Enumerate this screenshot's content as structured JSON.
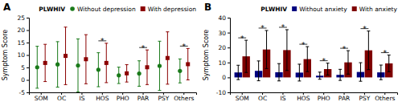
{
  "chart_data": [
    {
      "type": "point",
      "title": "A",
      "categories": [
        "SOM",
        "OC",
        "IS",
        "HOS",
        "PHO",
        "PAR",
        "PSY",
        "Others"
      ],
      "series": [
        {
          "name": "Without depression",
          "color": "#1a7a1a",
          "marker": "circle",
          "values": [
            5.08,
            6.23,
            5.81,
            4.09,
            1.83,
            2.56,
            5.65,
            3.61
          ],
          "errors": [
            8.42,
            9.13,
            10.66,
            6.83,
            3.29,
            5.11,
            9.89,
            4.81
          ]
        },
        {
          "name": "With depression",
          "color": "#8b0000",
          "marker": "square",
          "values": [
            6.81,
            9.65,
            8.31,
            6.81,
            2.63,
            5.08,
            8.79,
            6.31
          ],
          "errors": [
            7.48,
            11.55,
            9.86,
            7.91,
            3.48,
            6.96,
            10.51,
            6.31
          ]
        }
      ],
      "annotations": [
        {
          "text": "*",
          "category": "HOS"
        },
        {
          "text": "*",
          "category": "PAR"
        },
        {
          "text": "*",
          "category": "Others"
        }
      ],
      "y_label": "Symptom Score",
      "ylim": [
        -5,
        25
      ],
      "yticks": [
        -5,
        0,
        5,
        10,
        15,
        20,
        25
      ],
      "grid": false,
      "legend": "upper right",
      "legend_title": "PLWHIV"
    },
    {
      "type": "bar",
      "title": "B",
      "categories": [
        "SOM",
        "OC",
        "IS",
        "HOS",
        "PHO",
        "PAR",
        "PSY",
        "Others"
      ],
      "series": [
        {
          "name": "Without anxiety",
          "color": "#00007f",
          "values": [
            3.33,
            4.39,
            3.45,
            3.22,
            1.15,
            1.71,
            3.65,
            3.38
          ],
          "errors": [
            4.81,
            6.64,
            5.79,
            5.63,
            2.39,
            3.71,
            6.21,
            4.89
          ]
        },
        {
          "name": "With anxiety",
          "color": "#7f0000",
          "values": [
            14.11,
            18.68,
            18.29,
            12.25,
            5.57,
            10.07,
            18.14,
            9.39
          ],
          "errors": [
            10.77,
            12.73,
            13.66,
            8.36,
            3.98,
            7.84,
            12.92,
            5.57
          ]
        }
      ],
      "annotations": [
        {
          "text": "*",
          "category": "SOM"
        },
        {
          "text": "*",
          "category": "OC"
        },
        {
          "text": "*",
          "category": "IS"
        },
        {
          "text": "*",
          "category": "HOS"
        },
        {
          "text": "*",
          "category": "PHO"
        },
        {
          "text": "*",
          "category": "PAR"
        },
        {
          "text": "*",
          "category": "PSY"
        },
        {
          "text": "*",
          "category": "Others"
        }
      ],
      "y_label": "Symptom Score",
      "ylim": [
        -10,
        40
      ],
      "yticks": [
        -10,
        0,
        10,
        20,
        30,
        40
      ],
      "grid": false,
      "legend": "upper right",
      "legend_title": "PLWHIV"
    }
  ]
}
